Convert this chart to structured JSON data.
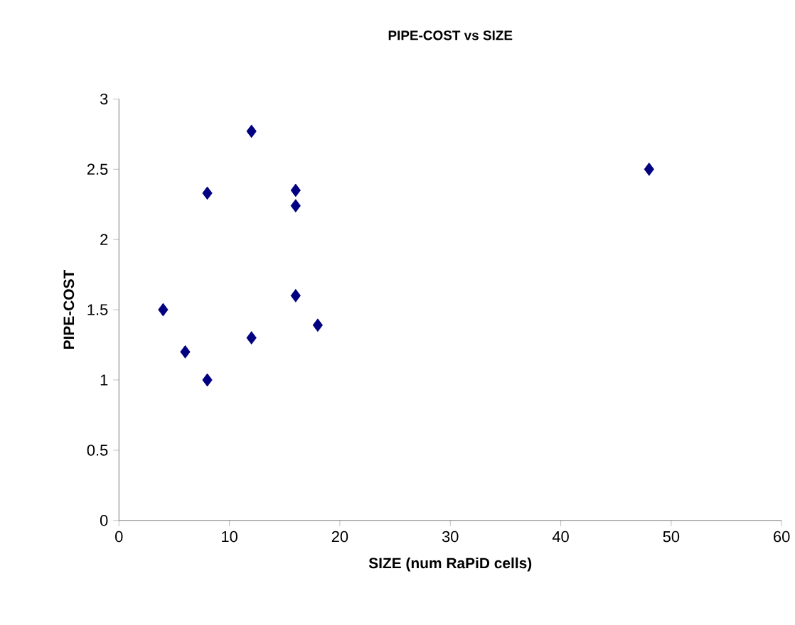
{
  "chart_data": {
    "type": "scatter",
    "title": "PIPE-COST vs SIZE",
    "xlabel": "SIZE (num RaPiD cells)",
    "ylabel": "PIPE-COST",
    "x": [
      4,
      6,
      8,
      8,
      12,
      12,
      16,
      16,
      16,
      18,
      48
    ],
    "values": [
      1.5,
      1.2,
      1.0,
      2.33,
      2.77,
      1.3,
      2.35,
      2.24,
      1.6,
      1.39,
      2.5
    ],
    "color": "#000080",
    "marker": "diamond",
    "xlim": [
      0,
      60
    ],
    "xticks": [
      0,
      10,
      20,
      30,
      40,
      50,
      60
    ],
    "ylim": [
      0,
      3
    ],
    "yticks": [
      0,
      0.5,
      1,
      1.5,
      2,
      2.5,
      3
    ]
  }
}
